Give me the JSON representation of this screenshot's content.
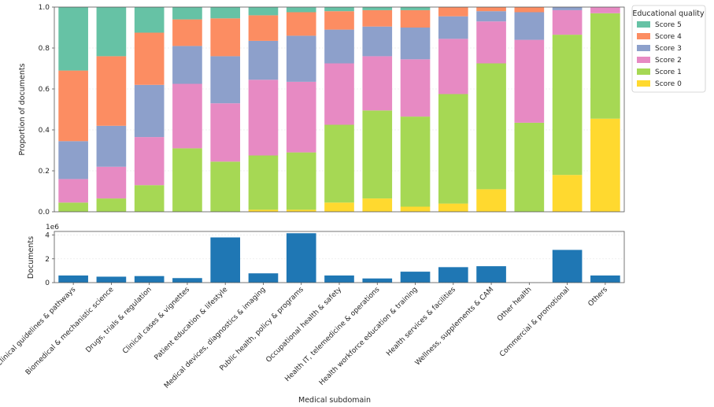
{
  "chart_data": [
    {
      "type": "bar",
      "stacked": true,
      "ylabel": "Proportion of documents",
      "ylim": [
        0,
        1.0
      ],
      "yticks": [
        "0.0",
        "0.2",
        "0.4",
        "0.6",
        "0.8",
        "1.0"
      ],
      "grid": true,
      "legend": {
        "title": "Educational quality",
        "placement": "right"
      },
      "series": [
        {
          "name": "Score 0",
          "color": "#ffd92f",
          "values": [
            0.0,
            0.0,
            0.0,
            0.0,
            0.0,
            0.01,
            0.01,
            0.045,
            0.065,
            0.025,
            0.04,
            0.11,
            0.0,
            0.18,
            0.455
          ]
        },
        {
          "name": "Score 1",
          "color": "#a6d854",
          "values": [
            0.045,
            0.065,
            0.13,
            0.31,
            0.245,
            0.265,
            0.28,
            0.38,
            0.43,
            0.44,
            0.535,
            0.615,
            0.435,
            0.685,
            0.515
          ]
        },
        {
          "name": "Score 2",
          "color": "#e78ac3",
          "values": [
            0.115,
            0.155,
            0.235,
            0.315,
            0.285,
            0.37,
            0.345,
            0.3,
            0.265,
            0.28,
            0.27,
            0.205,
            0.405,
            0.12,
            0.03
          ]
        },
        {
          "name": "Score 3",
          "color": "#8da0cb",
          "values": [
            0.185,
            0.2,
            0.255,
            0.185,
            0.23,
            0.19,
            0.225,
            0.165,
            0.145,
            0.155,
            0.11,
            0.05,
            0.135,
            0.015,
            0.0
          ]
        },
        {
          "name": "Score 4",
          "color": "#fc8d62",
          "values": [
            0.345,
            0.34,
            0.255,
            0.13,
            0.185,
            0.125,
            0.115,
            0.09,
            0.08,
            0.085,
            0.045,
            0.02,
            0.025,
            0.0,
            0.0
          ]
        },
        {
          "name": "Score 5",
          "color": "#66c2a5",
          "values": [
            0.31,
            0.24,
            0.125,
            0.06,
            0.055,
            0.04,
            0.024,
            0.02,
            0.015,
            0.015,
            0.0,
            0.0,
            0.0,
            0.0,
            0.0
          ]
        }
      ]
    },
    {
      "type": "bar",
      "ylabel": "Documents",
      "scale_label": "1e6",
      "ylim": [
        0,
        4.3
      ],
      "yticks": [
        0,
        2,
        4
      ],
      "grid": true,
      "xlabel": "Medical subdomain",
      "color": "#1f77b4",
      "series": [
        {
          "values": [
            0.6,
            0.5,
            0.55,
            0.38,
            3.8,
            0.78,
            4.15,
            0.6,
            0.35,
            0.92,
            1.3,
            1.38,
            0.0,
            2.75,
            0.6
          ]
        }
      ]
    }
  ],
  "categories": [
    "Clinical guidelines & pathways",
    "Biomedical & mechanistic science",
    "Drugs, trials & regulation",
    "Clinical cases & vignettes",
    "Patient education & lifestyle",
    "Medical devices, diagnostics & imaging",
    "Public health, policy & programs",
    "Occupational health & safety",
    "Health IT, telemedicine & operations",
    "Health workforce education & training",
    "Health services & facilities",
    "Wellness, supplements & CAM",
    "Other health",
    "Commercial & promotional",
    "Others"
  ]
}
